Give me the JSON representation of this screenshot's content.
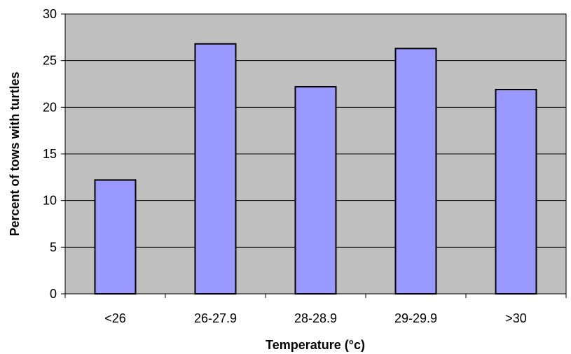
{
  "chart_data": {
    "type": "bar",
    "title": "",
    "xlabel": "Temperature (°c)",
    "ylabel": "Percent of tows with turtles",
    "categories": [
      "<26",
      "26-27.9",
      "28-28.9",
      "29-29.9",
      ">30"
    ],
    "values": [
      12.2,
      26.8,
      22.2,
      26.3,
      21.9
    ],
    "ylim": [
      0,
      30
    ],
    "yticks": [
      "0",
      "5",
      "10",
      "15",
      "20",
      "25",
      "30"
    ],
    "grid": true,
    "legend": "none",
    "colors": {
      "plot_background": "#c0c0c0",
      "bar_fill": "#9999ff",
      "bar_stroke": "#000000",
      "gridline": "#000000"
    }
  }
}
